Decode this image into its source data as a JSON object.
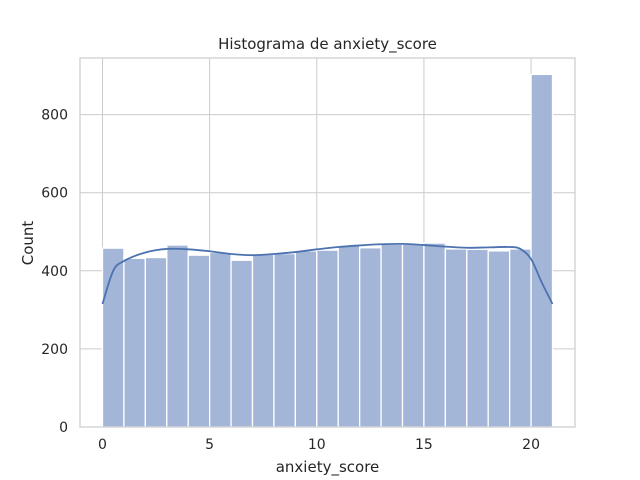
{
  "chart_data": {
    "type": "bar",
    "title": "Histograma de anxiety_score",
    "xlabel": "anxiety_score",
    "ylabel": "Count",
    "xlim": [
      -1.05,
      22.05
    ],
    "ylim": [
      0,
      945
    ],
    "xticks": [
      0,
      5,
      10,
      15,
      20
    ],
    "yticks": [
      0,
      200,
      400,
      600,
      800
    ],
    "grid": true,
    "bin_edges": [
      0,
      1,
      2,
      3,
      4,
      5,
      6,
      7,
      8,
      9,
      10,
      11,
      12,
      13,
      14,
      15,
      16,
      17,
      18,
      19,
      20,
      21
    ],
    "values": [
      458,
      432,
      434,
      466,
      440,
      447,
      427,
      442,
      444,
      451,
      453,
      465,
      459,
      468,
      468,
      471,
      456,
      455,
      451,
      456,
      903
    ],
    "bar_color": "#a4b6d8",
    "bar_edge_color": "#ffffff",
    "kde": {
      "color": "#4c72b0",
      "x": [
        0,
        0.5,
        1,
        2,
        3,
        4,
        5,
        6,
        7,
        8,
        9,
        10,
        11,
        12,
        13,
        14,
        15,
        16,
        17,
        18,
        19,
        19.5,
        20,
        20.5,
        21
      ],
      "y": [
        315,
        400,
        425,
        447,
        456,
        455,
        450,
        443,
        440,
        443,
        448,
        455,
        461,
        465,
        468,
        469,
        466,
        462,
        459,
        460,
        461,
        456,
        430,
        370,
        315
      ]
    }
  }
}
